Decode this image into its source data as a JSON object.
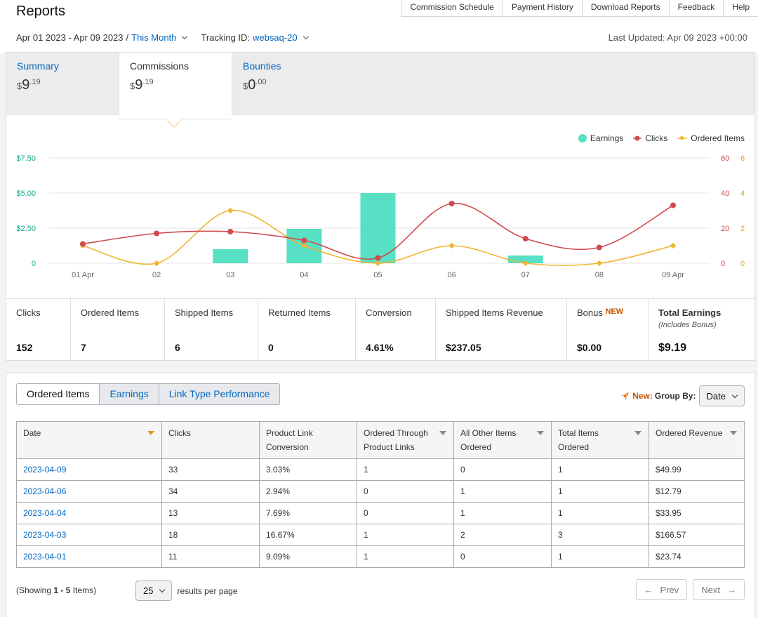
{
  "header": {
    "title": "Reports",
    "links": [
      "Commission Schedule",
      "Payment History",
      "Download Reports",
      "Feedback",
      "Help"
    ],
    "date_range": "Apr 01 2023 - Apr 09 2023",
    "date_separator": "/",
    "period": "This Month",
    "tracking_label": "Tracking ID:",
    "tracking_id": "websaq-20",
    "last_updated": "Last Updated: Apr 09 2023 +00:00"
  },
  "summary_tabs": [
    {
      "label": "Summary",
      "currency": "$",
      "whole": "9",
      "cents": ".19"
    },
    {
      "label": "Commissions",
      "currency": "$",
      "whole": "9",
      "cents": ".19"
    },
    {
      "label": "Bounties",
      "currency": "$",
      "whole": "0",
      "cents": ".00"
    }
  ],
  "colors": {
    "earnings": "#57e0c3",
    "clicks": "#d04a4e",
    "ordered_items": "#f0b533",
    "link": "#0066c0"
  },
  "chart_data": {
    "type": "bar",
    "categories": [
      "01 Apr",
      "02",
      "03",
      "04",
      "05",
      "06",
      "07",
      "08",
      "09 Apr"
    ],
    "series": [
      {
        "name": "Earnings",
        "type": "bar",
        "axis": "left",
        "values": [
          0,
          0,
          1.0,
          2.45,
          5.0,
          0,
          0.55,
          0,
          0
        ]
      },
      {
        "name": "Clicks",
        "type": "line",
        "axis": "right1",
        "values": [
          11,
          17,
          18,
          13,
          3,
          34,
          14,
          9,
          33
        ]
      },
      {
        "name": "Ordered Items",
        "type": "line",
        "axis": "right2",
        "values": [
          1,
          0,
          3,
          1,
          0,
          1,
          0,
          0,
          1
        ]
      }
    ],
    "left_axis": {
      "ticks": [
        "0",
        "$2.50",
        "$5.00",
        "$7.50"
      ],
      "ylim": [
        0,
        7.5
      ]
    },
    "right_axis_1": {
      "ticks": [
        "0",
        "20",
        "40",
        "60"
      ],
      "ylim": [
        0,
        60
      ]
    },
    "right_axis_2": {
      "ticks": [
        "0",
        "2",
        "4",
        "6"
      ],
      "ylim": [
        0,
        6
      ]
    },
    "legend": [
      "Earnings",
      "Clicks",
      "Ordered Items"
    ],
    "legend_position": "top-right",
    "grid": true
  },
  "stats": [
    {
      "label": "Clicks",
      "value": "152"
    },
    {
      "label": "Ordered Items",
      "value": "7"
    },
    {
      "label": "Shipped Items",
      "value": "6"
    },
    {
      "label": "Returned Items",
      "value": "0"
    },
    {
      "label": "Conversion",
      "value": "4.61%"
    },
    {
      "label": "Shipped Items Revenue",
      "value": "$237.05"
    },
    {
      "label": "Bonus",
      "badge": "NEW",
      "value": "$0.00"
    },
    {
      "label": "Total Earnings",
      "sublabel": "(Includes Bonus)",
      "value": "$9.19"
    }
  ],
  "report_tabs": [
    "Ordered Items",
    "Earnings",
    "Link Type Performance"
  ],
  "group_by": {
    "new_label": "New:",
    "label": "Group By:",
    "value": "Date"
  },
  "table": {
    "columns": [
      "Date",
      "Clicks",
      "Product Link Conversion",
      "Ordered Through Product Links",
      "All Other Items Ordered",
      "Total Items Ordered",
      "Ordered Revenue"
    ],
    "rows": [
      [
        "2023-04-09",
        "33",
        "3.03%",
        "1",
        "0",
        "1",
        "$49.99"
      ],
      [
        "2023-04-06",
        "34",
        "2.94%",
        "0",
        "1",
        "1",
        "$12.79"
      ],
      [
        "2023-04-04",
        "13",
        "7.69%",
        "0",
        "1",
        "1",
        "$33.95"
      ],
      [
        "2023-04-03",
        "18",
        "16.67%",
        "1",
        "2",
        "3",
        "$166.57"
      ],
      [
        "2023-04-01",
        "11",
        "9.09%",
        "1",
        "0",
        "1",
        "$23.74"
      ]
    ]
  },
  "footer": {
    "showing_prefix": "(Showing ",
    "showing_range": "1 - 5",
    "showing_suffix": " Items)",
    "per_page": "25",
    "per_page_label": "results per page",
    "prev": "Prev",
    "next": "Next"
  }
}
